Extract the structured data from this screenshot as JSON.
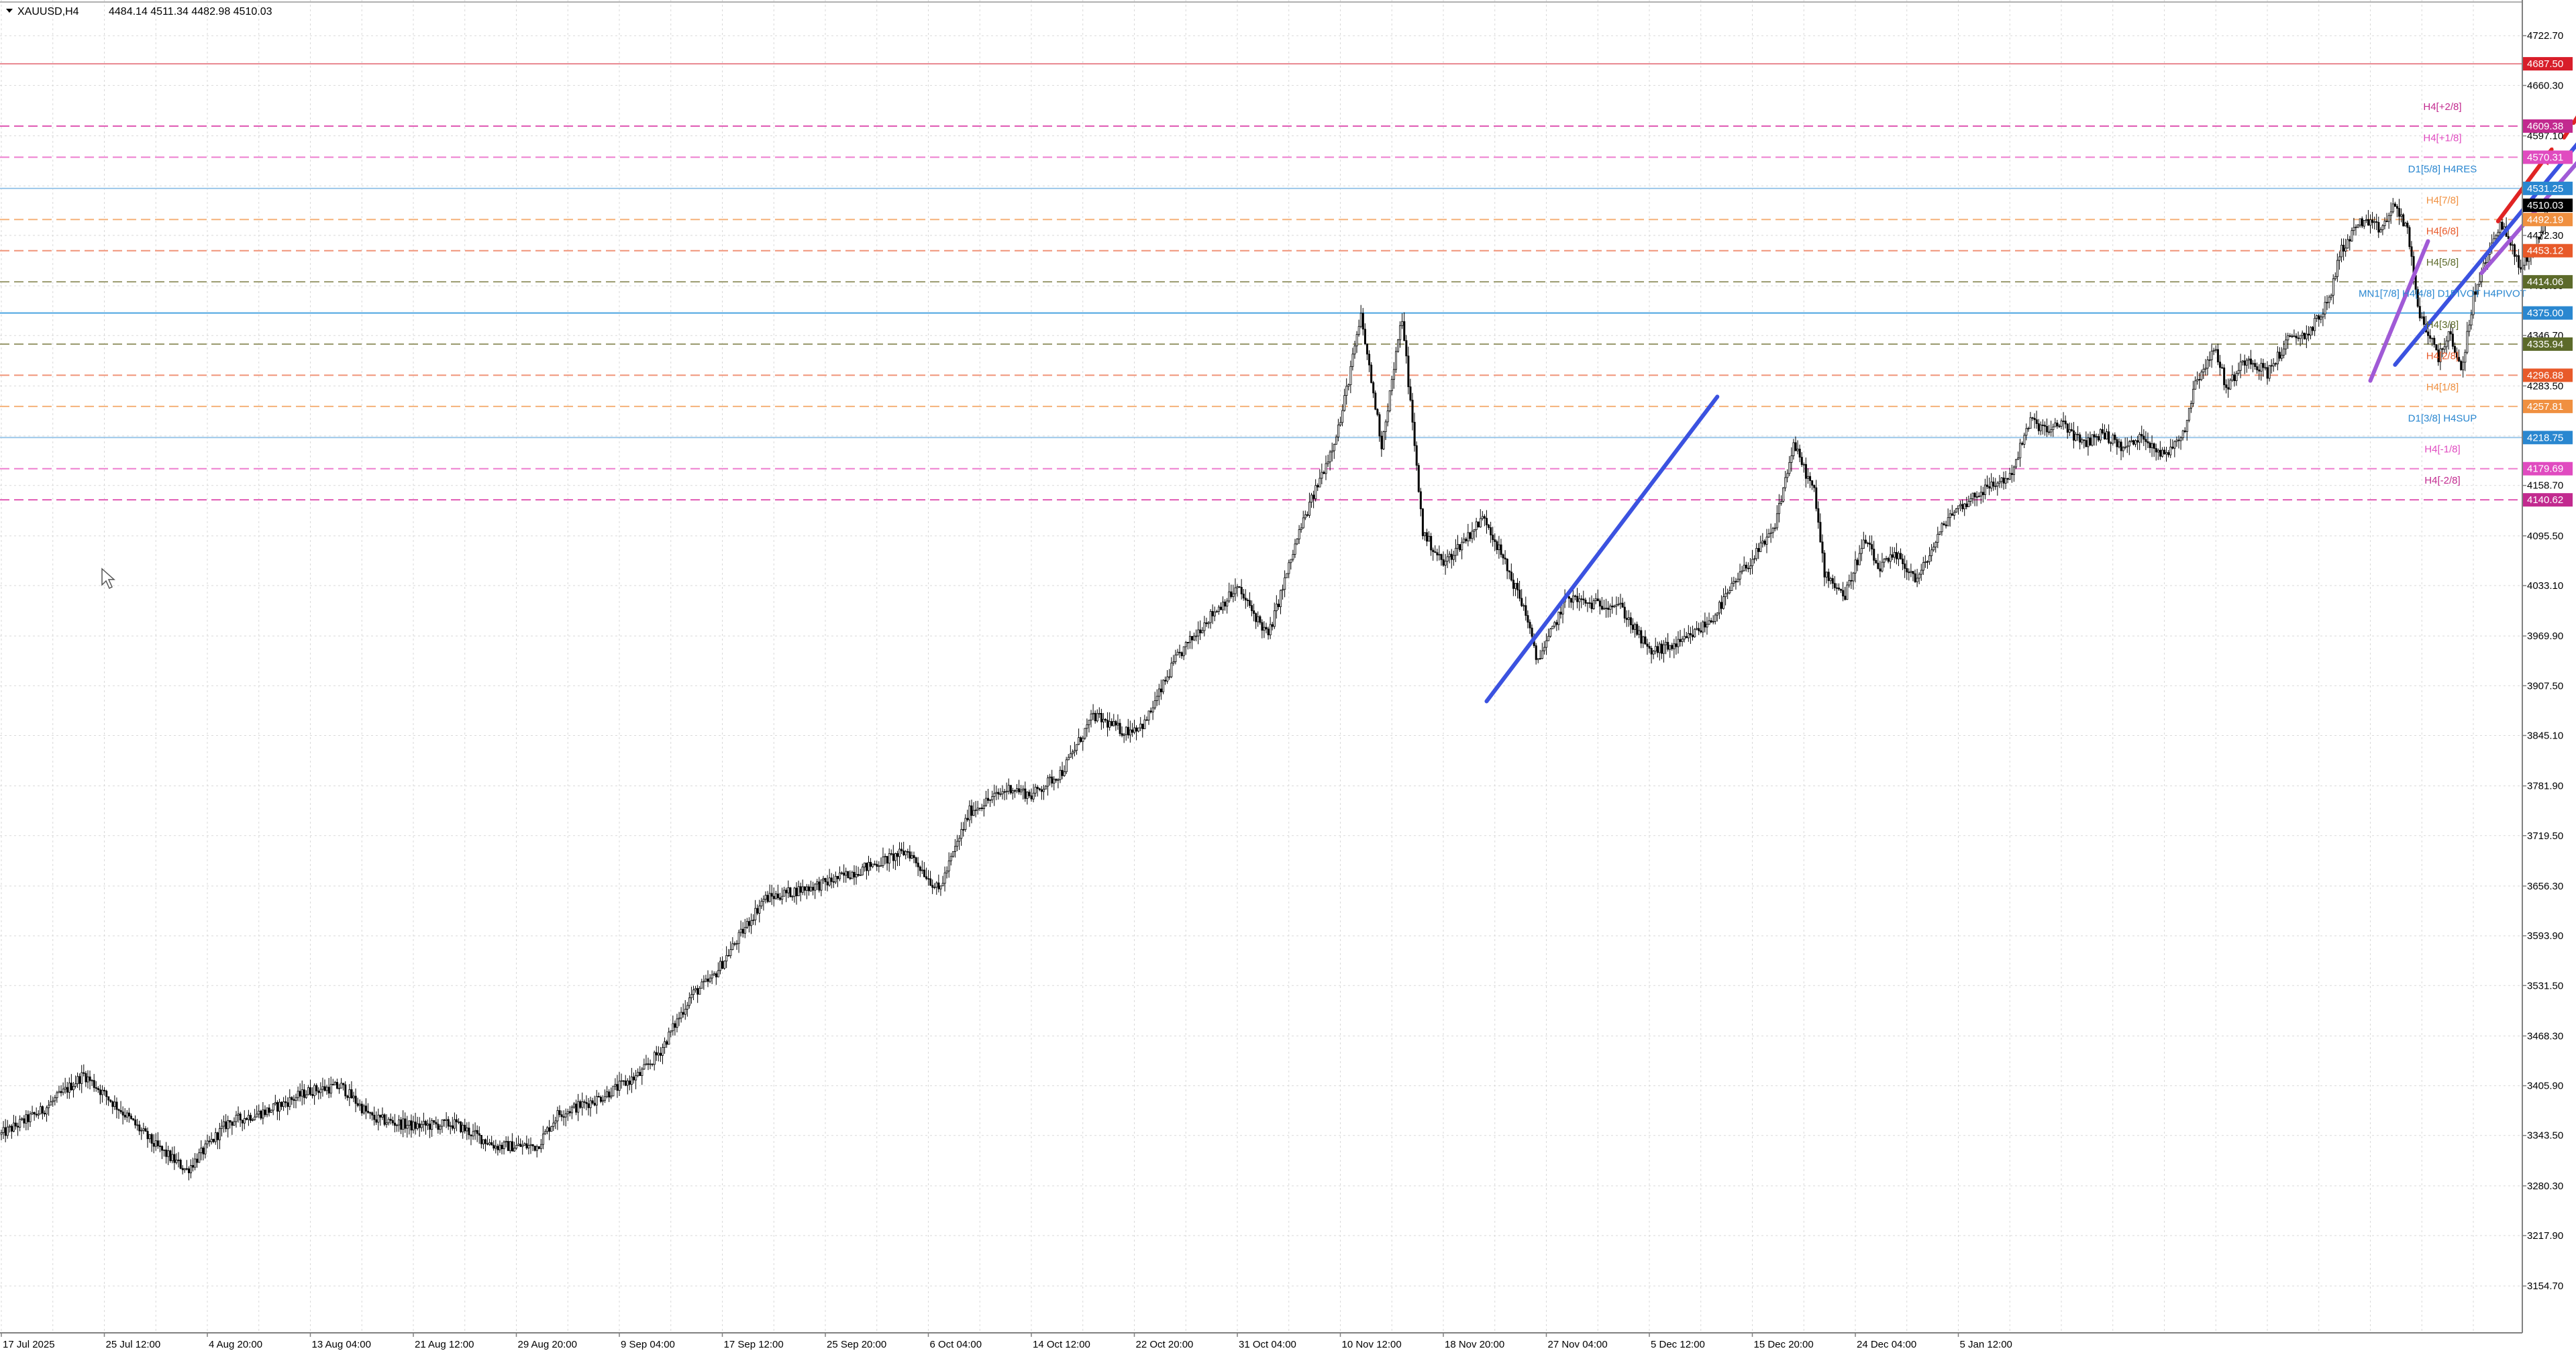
{
  "header": {
    "symbol_label": "XAUUSD,H4",
    "ohlc_label": "4484.14 4511.34 4482.98 4510.03"
  },
  "colors": {
    "bull_candle": "#ffffff",
    "bear_candle": "#000000",
    "candle_outline": "#000000",
    "grid": "#d9d9d9",
    "blue_trend": "#3b52e0",
    "purple_trend": "#a05ad6",
    "arrow_red": "#e02424",
    "murrey_magenta": "#e05ab4",
    "murrey_orange": "#f0a060",
    "murrey_olive": "#8b8f5a",
    "daily_blue": "#5aa0e0"
  },
  "chart_data": {
    "type": "candlestick",
    "symbol": "XAUUSD",
    "timeframe": "H4",
    "ylim": [
      3121.2,
      4752.35
    ],
    "y_ticks": [
      4722.7,
      4660.3,
      4597.1,
      4534.35,
      4472.3,
      4409.0,
      4346.7,
      4283.5,
      4220.75,
      4158.7,
      4095.5,
      4033.1,
      3969.9,
      3907.5,
      3845.1,
      3781.9,
      3719.5,
      3656.3,
      3593.9,
      3531.5,
      3468.3,
      3405.9,
      3343.5,
      3280.3,
      3217.9,
      3154.7
    ],
    "y_tick_labels": [
      "4722.70",
      "4660.30",
      "4597.10",
      "4534.35",
      "4472.30",
      "4409.00",
      "4346.70",
      "4283.50",
      "4220.75",
      "4158.70",
      "4095.50",
      "4033.10",
      "3969.90",
      "3907.50",
      "3845.10",
      "3781.90",
      "3719.50",
      "3656.30",
      "3593.90",
      "3531.50",
      "3468.30",
      "3405.90",
      "3343.50",
      "3280.30",
      "3217.90",
      "3154.70"
    ],
    "x_tick_labels": [
      "17 Jul 2025",
      "25 Jul 12:00",
      "4 Aug 20:00",
      "13 Aug 04:00",
      "21 Aug 12:00",
      "29 Aug 20:00",
      "9 Sep 04:00",
      "17 Sep 12:00",
      "25 Sep 20:00",
      "6 Oct 04:00",
      "14 Oct 12:00",
      "22 Oct 20:00",
      "31 Oct 04:00",
      "10 Nov 12:00",
      "18 Nov 20:00",
      "27 Nov 04:00",
      "5 Dec 12:00",
      "15 Dec 20:00",
      "24 Dec 04:00",
      "5 Jan 12:00"
    ],
    "bars_per_tick": 50,
    "last_bar_index": 1000,
    "close_anchors": [
      [
        0,
        3345
      ],
      [
        20,
        3375
      ],
      [
        40,
        3420
      ],
      [
        60,
        3370
      ],
      [
        75,
        3330
      ],
      [
        90,
        3300
      ],
      [
        110,
        3360
      ],
      [
        130,
        3375
      ],
      [
        150,
        3400
      ],
      [
        165,
        3405
      ],
      [
        180,
        3365
      ],
      [
        200,
        3355
      ],
      [
        220,
        3358
      ],
      [
        240,
        3330
      ],
      [
        260,
        3330
      ],
      [
        270,
        3370
      ],
      [
        290,
        3390
      ],
      [
        310,
        3420
      ],
      [
        320,
        3450
      ],
      [
        335,
        3520
      ],
      [
        345,
        3540
      ],
      [
        360,
        3600
      ],
      [
        370,
        3640
      ],
      [
        385,
        3650
      ],
      [
        400,
        3660
      ],
      [
        420,
        3680
      ],
      [
        440,
        3700
      ],
      [
        455,
        3650
      ],
      [
        470,
        3750
      ],
      [
        490,
        3780
      ],
      [
        500,
        3770
      ],
      [
        515,
        3800
      ],
      [
        530,
        3870
      ],
      [
        545,
        3850
      ],
      [
        555,
        3860
      ],
      [
        570,
        3940
      ],
      [
        585,
        3990
      ],
      [
        600,
        4030
      ],
      [
        615,
        3970
      ],
      [
        630,
        4100
      ],
      [
        645,
        4200
      ],
      [
        650,
        4240
      ],
      [
        660,
        4370
      ],
      [
        670,
        4210
      ],
      [
        680,
        4370
      ],
      [
        690,
        4100
      ],
      [
        700,
        4060
      ],
      [
        710,
        4090
      ],
      [
        720,
        4120
      ],
      [
        730,
        4060
      ],
      [
        740,
        4000
      ],
      [
        745,
        3940
      ],
      [
        750,
        3960
      ],
      [
        760,
        4020
      ],
      [
        770,
        4010
      ],
      [
        785,
        4010
      ],
      [
        800,
        3950
      ],
      [
        815,
        3960
      ],
      [
        830,
        3990
      ],
      [
        845,
        4050
      ],
      [
        860,
        4100
      ],
      [
        870,
        4210
      ],
      [
        880,
        4150
      ],
      [
        885,
        4050
      ],
      [
        895,
        4020
      ],
      [
        900,
        4060
      ],
      [
        905,
        4090
      ],
      [
        911,
        4055
      ],
      [
        920,
        4070
      ],
      [
        930,
        4040
      ],
      [
        945,
        4120
      ],
      [
        960,
        4150
      ],
      [
        975,
        4170
      ],
      [
        985,
        4240
      ],
      [
        995,
        4225
      ],
      [
        1000,
        4240
      ],
      [
        1010,
        4210
      ],
      [
        1020,
        4225
      ],
      [
        1030,
        4205
      ],
      [
        1040,
        4220
      ],
      [
        1050,
        4195
      ],
      [
        1060,
        4230
      ],
      [
        1065,
        4290
      ],
      [
        1075,
        4330
      ],
      [
        1080,
        4280
      ],
      [
        1090,
        4320
      ],
      [
        1100,
        4300
      ],
      [
        1110,
        4340
      ],
      [
        1120,
        4350
      ],
      [
        1130,
        4390
      ],
      [
        1135,
        4450
      ],
      [
        1145,
        4490
      ],
      [
        1155,
        4480
      ],
      [
        1162,
        4510
      ],
      [
        1168,
        4480
      ],
      [
        1173,
        4380
      ],
      [
        1178,
        4350
      ],
      [
        1183,
        4320
      ],
      [
        1188,
        4350
      ],
      [
        1194,
        4300
      ],
      [
        1200,
        4395
      ],
      [
        1206,
        4440
      ],
      [
        1213,
        4490
      ],
      [
        1218,
        4460
      ],
      [
        1223,
        4430
      ],
      [
        1230,
        4460
      ],
      [
        1234,
        4484
      ],
      [
        1236,
        4510
      ]
    ],
    "levels": [
      {
        "price": 4687.5,
        "label": "",
        "tag": "4687.50",
        "style": "solid",
        "color": "#e8868f",
        "tag_bg": "#d81e2a"
      },
      {
        "price": 4609.38,
        "label": "H4[+2/8]",
        "tag": "4609.38",
        "style": "dashed",
        "color": "#e05ab4",
        "tag_bg": "#c22a8f"
      },
      {
        "price": 4570.31,
        "label": "H4[+1/8]",
        "tag": "4570.31",
        "style": "dashed",
        "color": "#ee7ecf",
        "tag_bg": "#e04bc0"
      },
      {
        "price": 4531.25,
        "label": "D1[5/8] H4RES",
        "tag": "4531.25",
        "style": "solid",
        "color": "#9cc7ea",
        "tag_bg": "#2a87d0"
      },
      {
        "price": 4492.19,
        "label": "H4[7/8]",
        "tag": "4492.19",
        "style": "dashed",
        "color": "#f5b27a",
        "tag_bg": "#f09040"
      },
      {
        "price": 4453.12,
        "label": "H4[6/8]",
        "tag": "4453.12",
        "style": "dashed",
        "color": "#f09478",
        "tag_bg": "#e85a2a"
      },
      {
        "price": 4414.06,
        "label": "H4[5/8]",
        "tag": "4414.06",
        "style": "dashed",
        "color": "#9a9a6e",
        "tag_bg": "#5c6a2a"
      },
      {
        "price": 4375.0,
        "label": "MN1[7/8] H4[4/8] D1PIVOT H4PIVOT",
        "tag": "4375.00",
        "style": "solid",
        "color": "#4aa4e0",
        "tag_bg": "#2a87d0"
      },
      {
        "price": 4335.94,
        "label": "H4[3/8]",
        "tag": "4335.94",
        "style": "dashed",
        "color": "#9a9a6e",
        "tag_bg": "#5c6a2a"
      },
      {
        "price": 4296.88,
        "label": "H4[2/8]",
        "tag": "4296.88",
        "style": "dashed",
        "color": "#f09478",
        "tag_bg": "#e85a2a"
      },
      {
        "price": 4257.81,
        "label": "H4[1/8]",
        "tag": "4257.81",
        "style": "dashed",
        "color": "#f5b27a",
        "tag_bg": "#f09040"
      },
      {
        "price": 4218.75,
        "label": "D1[3/8] H4SUP",
        "tag": "4218.75",
        "style": "solid",
        "color": "#9cc7ea",
        "tag_bg": "#2a87d0"
      },
      {
        "price": 4179.69,
        "label": "H4[-1/8]",
        "tag": "4179.69",
        "style": "dashed",
        "color": "#ee7ecf",
        "tag_bg": "#e04bc0"
      },
      {
        "price": 4140.62,
        "label": "H4[-2/8]",
        "tag": "4140.62",
        "style": "dashed",
        "color": "#e05ab4",
        "tag_bg": "#c22a8f"
      }
    ],
    "current_price": {
      "price": 4510.03,
      "tag": "4510.03",
      "tag_bg": "#000000"
    },
    "trendlines": [
      {
        "kind": "blue",
        "from": [
          721,
          3888
        ],
        "to": [
          833,
          4270
        ]
      },
      {
        "kind": "blue",
        "from": [
          1162,
          4310
        ],
        "to": [
          1262,
          4623
        ]
      },
      {
        "kind": "purple",
        "from": [
          1150,
          4290
        ],
        "to": [
          1178,
          4465
        ]
      },
      {
        "kind": "purple",
        "from": [
          1204,
          4425
        ],
        "to": [
          1262,
          4598
        ]
      }
    ],
    "arrows": [
      {
        "style": "solid",
        "from": [
          1212,
          4490
        ],
        "to": [
          1238,
          4580
        ]
      },
      {
        "style": "dashed",
        "from": [
          1244,
          4595
        ],
        "to": [
          1263,
          4670
        ]
      }
    ]
  }
}
